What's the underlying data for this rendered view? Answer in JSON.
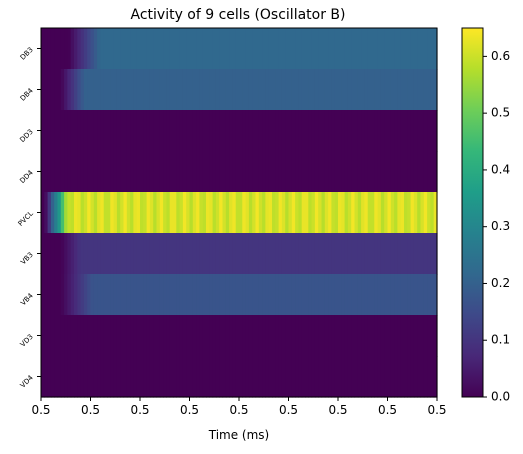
{
  "chart_data": {
    "type": "heatmap",
    "title": "Activity of 9 cells (Oscillator B)",
    "xlabel": "Time (ms)",
    "ylabel": "",
    "rows": [
      "DB3",
      "DB4",
      "DD3",
      "DD4",
      "PVCL",
      "VB3",
      "VB4",
      "VD3",
      "VD4"
    ],
    "x_tick_labels": [
      "0.5",
      "0.5",
      "0.5",
      "0.5",
      "0.5",
      "0.5",
      "0.5",
      "0.5",
      "0.5"
    ],
    "colormap": "viridis",
    "color_range": [
      0.0,
      0.65
    ],
    "colorbar_ticks": [
      "0.0",
      "0.1",
      "0.2",
      "0.3",
      "0.4",
      "0.5",
      "0.6"
    ],
    "colorbar_tick_values": [
      0.0,
      0.1,
      0.2,
      0.3,
      0.4,
      0.5,
      0.6
    ],
    "row_profiles": [
      {
        "row": "DB3",
        "onset_fraction": 0.07,
        "ramp_fraction": 0.08,
        "steady_value": 0.22,
        "oscillation_amplitude": 0.0
      },
      {
        "row": "DB4",
        "onset_fraction": 0.05,
        "ramp_fraction": 0.06,
        "steady_value": 0.2,
        "oscillation_amplitude": 0.0
      },
      {
        "row": "DD3",
        "onset_fraction": 0.0,
        "ramp_fraction": 0.0,
        "steady_value": 0.0,
        "oscillation_amplitude": 0.0
      },
      {
        "row": "DD4",
        "onset_fraction": 0.0,
        "ramp_fraction": 0.0,
        "steady_value": 0.0,
        "oscillation_amplitude": 0.0
      },
      {
        "row": "PVCL",
        "onset_fraction": 0.01,
        "ramp_fraction": 0.06,
        "steady_value": 0.61,
        "oscillation_amplitude": 0.03,
        "oscillation_cycles": 33
      },
      {
        "row": "VB3",
        "onset_fraction": 0.05,
        "ramp_fraction": 0.05,
        "steady_value": 0.1,
        "oscillation_amplitude": 0.0
      },
      {
        "row": "VB4",
        "onset_fraction": 0.05,
        "ramp_fraction": 0.08,
        "steady_value": 0.17,
        "oscillation_amplitude": 0.0
      },
      {
        "row": "VD3",
        "onset_fraction": 0.0,
        "ramp_fraction": 0.0,
        "steady_value": 0.0,
        "oscillation_amplitude": 0.0
      },
      {
        "row": "VD4",
        "onset_fraction": 0.0,
        "ramp_fraction": 0.0,
        "steady_value": 0.0,
        "oscillation_amplitude": 0.0
      }
    ]
  }
}
